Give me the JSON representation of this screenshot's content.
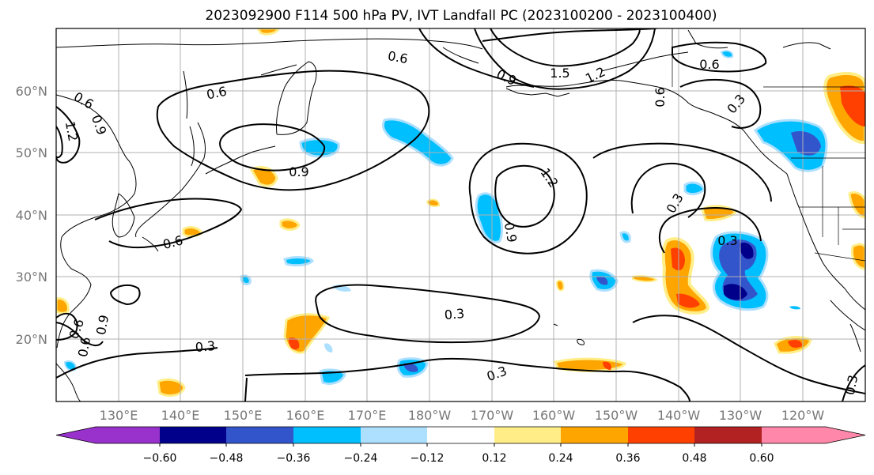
{
  "title": "2023092900 F114 500 hPa PV, IVT Landfall PC (2023100200 - 2023100400)",
  "lat_labels": [
    "60°N",
    "50°N",
    "40°N",
    "30°N",
    "20°N"
  ],
  "lon_labels": [
    "130°E",
    "140°E",
    "150°E",
    "160°E",
    "170°E",
    "180°W",
    "170°W",
    "160°W",
    "150°W",
    "140°W",
    "130°W",
    "120°W"
  ],
  "colorbar": {
    "colors": [
      "#9932CC",
      "#00008B",
      "#3355CC",
      "#00BFFF",
      "#ADDFFF",
      "#FFFFFF",
      "#FFEE88",
      "#FFA500",
      "#FF4000",
      "#B22222",
      "#FF88AA"
    ],
    "tick_labels": [
      "−0.60",
      "−0.48",
      "−0.36",
      "−0.24",
      "−0.12",
      "0.12",
      "0.24",
      "0.36",
      "0.48",
      "0.60"
    ]
  },
  "contour_labels": [
    "0.6",
    "0.6",
    "0.6",
    "0.9",
    "0.9",
    "1.2",
    "1.5",
    "0.6",
    "0.6",
    "0.6",
    "0.9",
    "1.2",
    "0.6",
    "0.3",
    "0.3",
    "0.3",
    "0.9",
    "1.2",
    "0.3",
    "0.3",
    "0.3",
    "0.6",
    "0.9",
    "0.3"
  ],
  "colors": {
    "grid": "#b0b0b0",
    "contour": "#000000",
    "coast": "#000000",
    "axis_text": "#777777"
  }
}
